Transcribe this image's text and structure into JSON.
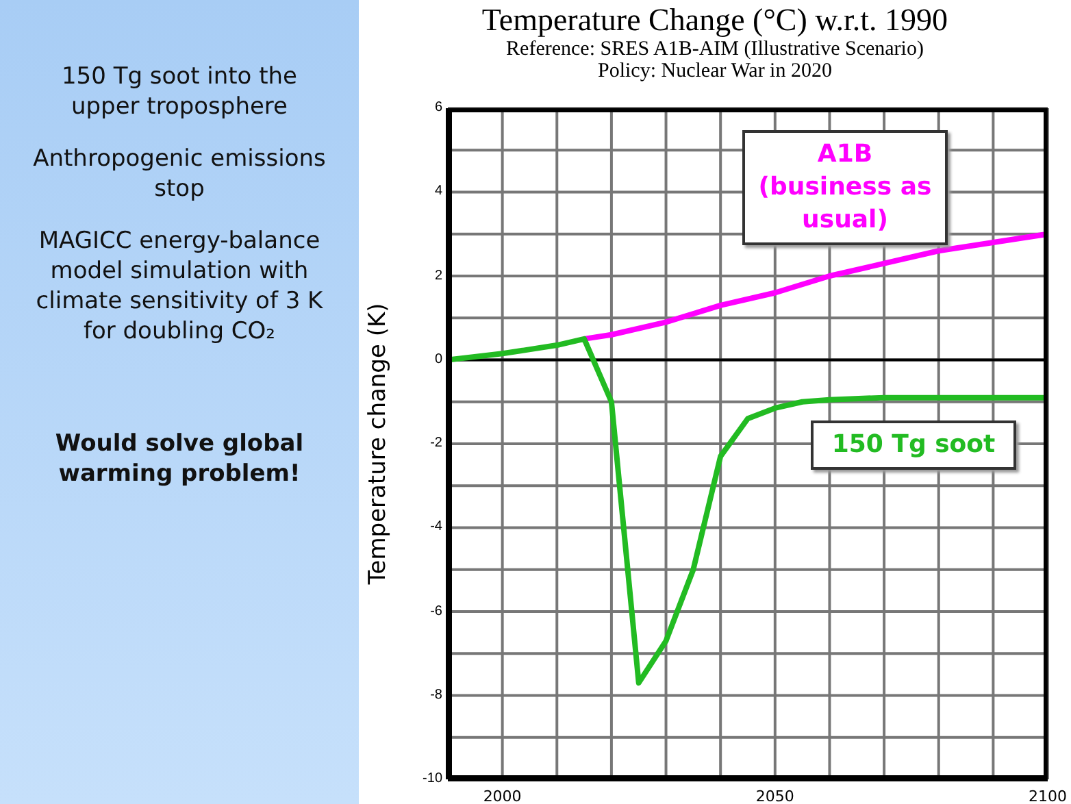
{
  "chart_data": {
    "type": "line",
    "title": "Temperature Change (°C) w.r.t. 1990",
    "subtitle": "Reference: SRES A1B-AIM (Illustrative Scenario)",
    "ylabel": "Temperature change (K)",
    "annotations": [
      "Policy: Nuclear War in 2020",
      "150 Tg soot into the upper troposphere",
      "Anthropogenic emissions stop",
      "MAGICC energy-balance model simulation with climate sensitivity of 3 K for doubling CO₂",
      "Would solve global warming problem!"
    ],
    "series": [
      {
        "name": "A1B (business as usual)",
        "color": "#ff00ff",
        "x": [
          2015,
          2020,
          2030,
          2040,
          2050,
          2060,
          2070,
          2080,
          2090,
          2100
        ],
        "values": [
          0.5,
          0.6,
          0.9,
          1.3,
          1.6,
          2.0,
          2.3,
          2.6,
          2.8,
          3.0
        ]
      },
      {
        "name": "150 Tg soot",
        "color": "#22bb22",
        "x": [
          1990,
          2000,
          2010,
          2015,
          2020,
          2025,
          2030,
          2035,
          2040,
          2045,
          2050,
          2055,
          2060,
          2070,
          2080,
          2100
        ],
        "values": [
          0,
          0.15,
          0.35,
          0.5,
          -1,
          -7.7,
          -6.7,
          -5,
          -2.3,
          -1.4,
          -1.15,
          -1.0,
          -0.95,
          -0.9,
          -0.9,
          -0.9
        ]
      }
    ],
    "xlim": [
      1990,
      2100
    ],
    "xticks": [
      {
        "value": 1990,
        "label": null
      },
      2000,
      {
        "value": 2010,
        "label": null
      },
      {
        "value": 2020,
        "label": null
      },
      {
        "value": 2030,
        "label": null
      },
      {
        "value": 2040,
        "label": null
      },
      2050,
      {
        "value": 2060,
        "label": null
      },
      {
        "value": 2070,
        "label": null
      },
      {
        "value": 2080,
        "label": null
      },
      {
        "value": 2090,
        "label": null
      },
      2100
    ],
    "ylim": [
      -10,
      6
    ],
    "yticks": [
      -10,
      {
        "value": -9,
        "label": null
      },
      -8,
      {
        "value": -7,
        "label": null
      },
      -6,
      {
        "value": -5,
        "label": null
      },
      -4,
      {
        "value": -3,
        "label": null
      },
      -2,
      {
        "value": -1,
        "label": null
      },
      0,
      {
        "value": 1,
        "label": null
      },
      2,
      {
        "value": 3,
        "label": null
      },
      4,
      {
        "value": 5,
        "label": null
      },
      6
    ],
    "ref_lines": [
      {
        "axis": "y",
        "value": 0,
        "color": "#000000"
      }
    ],
    "grid": true,
    "line_style": "solid",
    "marker": "none"
  }
}
